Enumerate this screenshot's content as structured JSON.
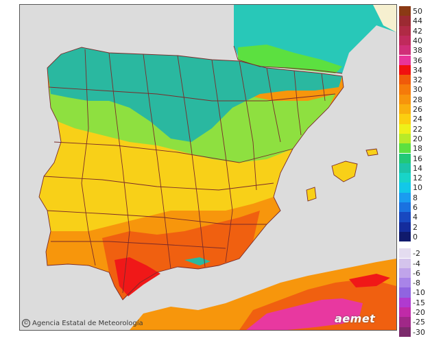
{
  "credit": {
    "symbol": "©",
    "text": "Agencia Estatal de Meteorología"
  },
  "logo": {
    "text": "aemet"
  },
  "legend": {
    "positive": [
      {
        "label": "50",
        "color": "#8b3a14"
      },
      {
        "label": "44",
        "color": "#9c2a32"
      },
      {
        "label": "42",
        "color": "#b02a45"
      },
      {
        "label": "40",
        "color": "#c02a5c"
      },
      {
        "label": "38",
        "color": "#d02e78"
      },
      {
        "label": "36",
        "color": "#e8349a"
      },
      {
        "label": "34",
        "color": "#f01010"
      },
      {
        "label": "32",
        "color": "#f05a0a"
      },
      {
        "label": "30",
        "color": "#f57a0a"
      },
      {
        "label": "28",
        "color": "#f7940c"
      },
      {
        "label": "26",
        "color": "#f9b00e"
      },
      {
        "label": "24",
        "color": "#fbcf10"
      },
      {
        "label": "22",
        "color": "#eef01a"
      },
      {
        "label": "20",
        "color": "#b8ea28"
      },
      {
        "label": "18",
        "color": "#5ce040"
      },
      {
        "label": "16",
        "color": "#22c878"
      },
      {
        "label": "14",
        "color": "#1cc4a8"
      },
      {
        "label": "12",
        "color": "#18d4c8"
      },
      {
        "label": "10",
        "color": "#12c8e8"
      },
      {
        "label": "8",
        "color": "#1a9cf0"
      },
      {
        "label": "6",
        "color": "#1a72e0"
      },
      {
        "label": "4",
        "color": "#1848c0"
      },
      {
        "label": "2",
        "color": "#142c9c"
      },
      {
        "label": "0",
        "color": "#101a6c"
      }
    ],
    "negative": [
      {
        "label": "-2",
        "color": "#e4dcf0"
      },
      {
        "label": "-4",
        "color": "#d4c4ec"
      },
      {
        "label": "-6",
        "color": "#c0a4ea"
      },
      {
        "label": "-8",
        "color": "#a884e8"
      },
      {
        "label": "-10",
        "color": "#9064e0"
      },
      {
        "label": "-15",
        "color": "#b03ad0"
      },
      {
        "label": "-20",
        "color": "#c02aa8"
      },
      {
        "label": "-25",
        "color": "#a02888"
      },
      {
        "label": "-30",
        "color": "#7c2a6c"
      }
    ]
  },
  "map_colors": {
    "sea": "#dcdcdc",
    "border": "#7a2a2a",
    "cool": "#2ab8a0",
    "mild": "#8ee040",
    "warm": "#f8d018",
    "hot": "#f7960c",
    "very_hot": "#f06010",
    "extreme": "#f01818",
    "africa_hot": "#e838a0",
    "france_cool": "#28c8b8",
    "france_pale": "#f6f0d0"
  }
}
